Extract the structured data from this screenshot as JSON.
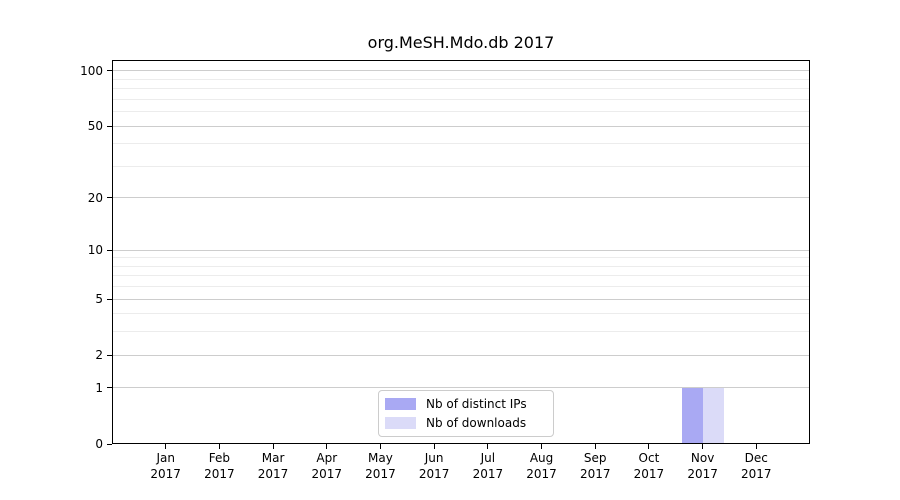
{
  "chart_data": {
    "type": "bar",
    "title": "org.MeSH.Mdo.db 2017",
    "categories": [
      "Jan 2017",
      "Feb 2017",
      "Mar 2017",
      "Apr 2017",
      "May 2017",
      "Jun 2017",
      "Jul 2017",
      "Aug 2017",
      "Sep 2017",
      "Oct 2017",
      "Nov 2017",
      "Dec 2017"
    ],
    "series": [
      {
        "name": "Nb of distinct IPs",
        "color": "#a9a9f3",
        "values": [
          0,
          0,
          0,
          0,
          0,
          0,
          0,
          0,
          0,
          0,
          1,
          0
        ]
      },
      {
        "name": "Nb of downloads",
        "color": "#dbdbf8",
        "values": [
          0,
          0,
          0,
          0,
          0,
          0,
          0,
          0,
          0,
          0,
          1,
          0
        ]
      }
    ],
    "xlabel": "",
    "ylabel": "",
    "yscale": "log1p",
    "ylim": [
      0,
      113.3
    ],
    "yticks": [
      0,
      1,
      2,
      5,
      10,
      20,
      50,
      100
    ],
    "yticks_minor": [
      3,
      4,
      6,
      7,
      8,
      9,
      30,
      40,
      60,
      70,
      80,
      90
    ],
    "grid": "horizontal",
    "legend_position": "lower center"
  },
  "colors": {
    "grid_major": "#cdcdcd",
    "grid_minor": "#ececec",
    "axis": "#000000",
    "background": "#ffffff",
    "legend_border": "#cccccc"
  }
}
